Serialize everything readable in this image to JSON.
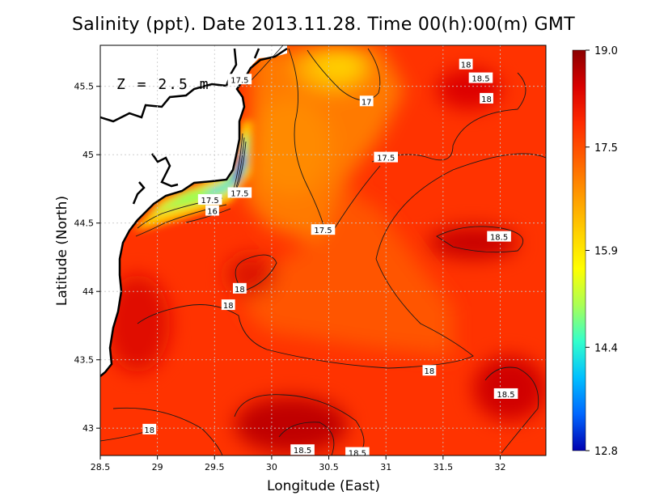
{
  "title": "Salinity (ppt). Date 2013.11.28. Time 00(h):00(m) GMT",
  "depth_label": "Z = 2.5 m",
  "x_axis": {
    "label": "Longitude (East)",
    "ticks": [
      "28.5",
      "29",
      "29.5",
      "30",
      "30.5",
      "31",
      "31.5",
      "32"
    ]
  },
  "y_axis": {
    "label": "Latitude (North)",
    "ticks": [
      "43",
      "43.5",
      "44",
      "44.5",
      "45",
      "45.5"
    ]
  },
  "colorbar": {
    "ticks": [
      "19.0",
      "17.5",
      "15.9",
      "14.4",
      "12.8"
    ],
    "stops": [
      "#8b0000",
      "#d90000",
      "#ff2a00",
      "#ff6000",
      "#ff9a00",
      "#ffd000",
      "#ffff00",
      "#aaff55",
      "#33ffcc",
      "#00bfff",
      "#0066ff",
      "#0000b0"
    ]
  },
  "contour_labels": [
    {
      "text": "18",
      "lon": 31.7,
      "lat": 45.66
    },
    {
      "text": "18.5",
      "lon": 31.83,
      "lat": 45.56
    },
    {
      "text": "18",
      "lon": 31.88,
      "lat": 45.41
    },
    {
      "text": "17.5",
      "lon": 29.72,
      "lat": 45.55
    },
    {
      "text": "17",
      "lon": 30.83,
      "lat": 45.39
    },
    {
      "text": "17.5",
      "lon": 31.0,
      "lat": 44.98
    },
    {
      "text": "17.5",
      "lon": 29.72,
      "lat": 44.72
    },
    {
      "text": "17.5",
      "lon": 29.46,
      "lat": 44.67
    },
    {
      "text": "16",
      "lon": 29.48,
      "lat": 44.59
    },
    {
      "text": "17.5",
      "lon": 30.45,
      "lat": 44.45
    },
    {
      "text": "18.5",
      "lon": 31.99,
      "lat": 44.4
    },
    {
      "text": "18",
      "lon": 29.72,
      "lat": 44.02
    },
    {
      "text": "18",
      "lon": 29.62,
      "lat": 43.9
    },
    {
      "text": "18",
      "lon": 31.38,
      "lat": 43.42
    },
    {
      "text": "18.5",
      "lon": 32.05,
      "lat": 43.25
    },
    {
      "text": "18",
      "lon": 28.93,
      "lat": 42.99
    },
    {
      "text": "18.5",
      "lon": 30.27,
      "lat": 42.84
    },
    {
      "text": "18.5",
      "lon": 30.75,
      "lat": 42.82
    }
  ],
  "colors": {
    "land": "#ffffff",
    "coastline": "#000000",
    "grid": "#c8c8c8"
  }
}
